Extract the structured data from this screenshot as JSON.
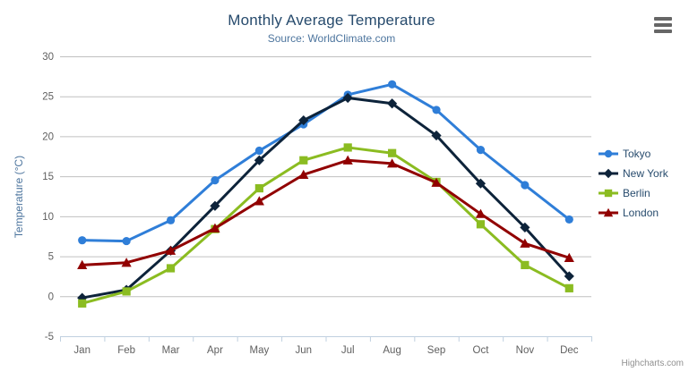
{
  "header": {
    "title": "Monthly Average Temperature",
    "subtitle": "Source: WorldClimate.com"
  },
  "export_menu": {
    "icon": "hamburger-menu-icon"
  },
  "credits": {
    "label": "Highcharts.com"
  },
  "colors": {
    "title": "#274b6d",
    "subtitle": "#4d759e",
    "axis_title": "#4d759e",
    "tick_label": "#606060",
    "grid_line": "#c0c0c0",
    "axis_line": "#c0d0e0",
    "legend_text": "#274b6d",
    "credits_text": "#909090",
    "export_icon": "#666666",
    "background": "#ffffff"
  },
  "chart_data": {
    "type": "line",
    "title": "Monthly Average Temperature",
    "subtitle": "Source: WorldClimate.com",
    "categories": [
      "Jan",
      "Feb",
      "Mar",
      "Apr",
      "May",
      "Jun",
      "Jul",
      "Aug",
      "Sep",
      "Oct",
      "Nov",
      "Dec"
    ],
    "xlabel": "",
    "ylabel": "Temperature (°C)",
    "ylim": [
      -5,
      30
    ],
    "ytick_step": 5,
    "yticks": [
      -5,
      0,
      5,
      10,
      15,
      20,
      25,
      30
    ],
    "grid": true,
    "legend_position": "right",
    "series": [
      {
        "name": "Tokyo",
        "color": "#2f7ed8",
        "marker": "circle",
        "values": [
          7.0,
          6.9,
          9.5,
          14.5,
          18.2,
          21.5,
          25.2,
          26.5,
          23.3,
          18.3,
          13.9,
          9.6
        ]
      },
      {
        "name": "New York",
        "color": "#0d233a",
        "marker": "diamond",
        "values": [
          -0.2,
          0.8,
          5.7,
          11.3,
          17.0,
          22.0,
          24.8,
          24.1,
          20.1,
          14.1,
          8.6,
          2.5
        ]
      },
      {
        "name": "Berlin",
        "color": "#8bbc21",
        "marker": "square",
        "values": [
          -0.9,
          0.6,
          3.5,
          8.4,
          13.5,
          17.0,
          18.6,
          17.9,
          14.3,
          9.0,
          3.9,
          1.0
        ]
      },
      {
        "name": "London",
        "color": "#910000",
        "marker": "triangle",
        "values": [
          3.9,
          4.2,
          5.7,
          8.5,
          11.9,
          15.2,
          17.0,
          16.6,
          14.2,
          10.3,
          6.6,
          4.8
        ]
      }
    ],
    "credits": "Highcharts.com"
  }
}
